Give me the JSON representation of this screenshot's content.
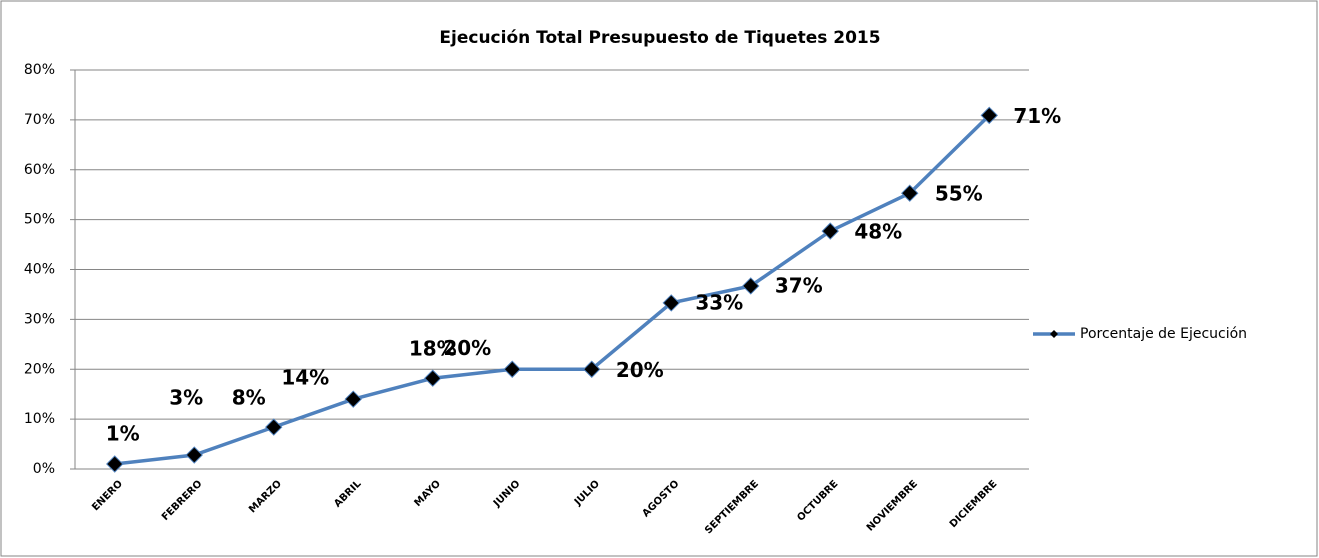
{
  "chart_data": {
    "type": "line",
    "title": "Ejecución Total Presupuesto de Tiquetes 2015",
    "categories": [
      "ENERO",
      "FEBRERO",
      "MARZO",
      "ABRIL",
      "MAYO",
      "JUNIO",
      "JULIO",
      "AGOSTO",
      "SEPTIEMBRE",
      "OCTUBRE",
      "NOVIEMBRE",
      "DICIEMBRE"
    ],
    "series": [
      {
        "name": "Porcentaje de Ejecución",
        "color": "#4f81bd",
        "values": [
          1.0,
          2.8,
          8.4,
          14.0,
          18.2,
          20.0,
          20.0,
          33.3,
          36.7,
          47.7,
          55.3,
          70.9
        ],
        "value_labels": [
          "1%",
          "3%",
          "8%",
          "14%",
          "18%",
          "20%",
          "20%",
          "33%",
          "37%",
          "48%",
          "55%",
          "71%"
        ]
      }
    ],
    "ylim": [
      0,
      80
    ],
    "yticks": [
      {
        "value": 0,
        "label": "0%"
      },
      {
        "value": 10,
        "label": "10%"
      },
      {
        "value": 20,
        "label": "20%"
      },
      {
        "value": 30,
        "label": "30%"
      },
      {
        "value": 40,
        "label": "40%"
      },
      {
        "value": 50,
        "label": "50%"
      },
      {
        "value": 60,
        "label": "60%"
      },
      {
        "value": 70,
        "label": "70%"
      },
      {
        "value": 80,
        "label": "80%"
      }
    ],
    "grid": true,
    "legend": "right"
  }
}
